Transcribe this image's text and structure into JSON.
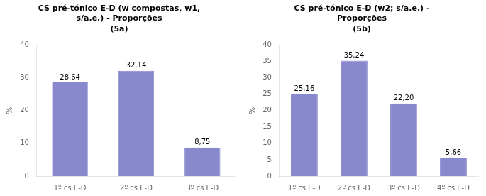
{
  "chart_data": [
    {
      "type": "bar",
      "title": [
        "CS pré-tónico E-D (w compostas, w1,",
        "s/a.e.) - Proporções"
      ],
      "subtitle": "(5a)",
      "categories": [
        "1º cs E-D",
        "2º cs E-D",
        "3º cs E-D"
      ],
      "values": [
        28.64,
        32.14,
        8.75
      ],
      "value_labels": [
        "28,64",
        "32,14",
        "8,75"
      ],
      "data_labels": true,
      "color": "#8888cc",
      "ylabel": "%",
      "ylim": [
        0,
        40
      ],
      "yticks": [
        0,
        10,
        20,
        30,
        40
      ],
      "grid": false
    },
    {
      "type": "bar",
      "title": [
        "CS pré-tónico E-D (w2; s/a.e.) -",
        "Proporções"
      ],
      "subtitle": "(5b)",
      "categories": [
        "1º cs E-D",
        "2º cs E-D",
        "3º cs E-D",
        "4º cs E-D"
      ],
      "values": [
        25.16,
        35.24,
        22.2,
        5.66
      ],
      "value_labels": [
        "25,16",
        "35,24",
        "22,20",
        "5,66"
      ],
      "data_labels": true,
      "color": "#8888cc",
      "ylabel": "%",
      "ylim": [
        0,
        40
      ],
      "yticks": [
        0,
        5,
        10,
        15,
        20,
        25,
        30,
        35,
        40
      ],
      "grid": false
    }
  ]
}
